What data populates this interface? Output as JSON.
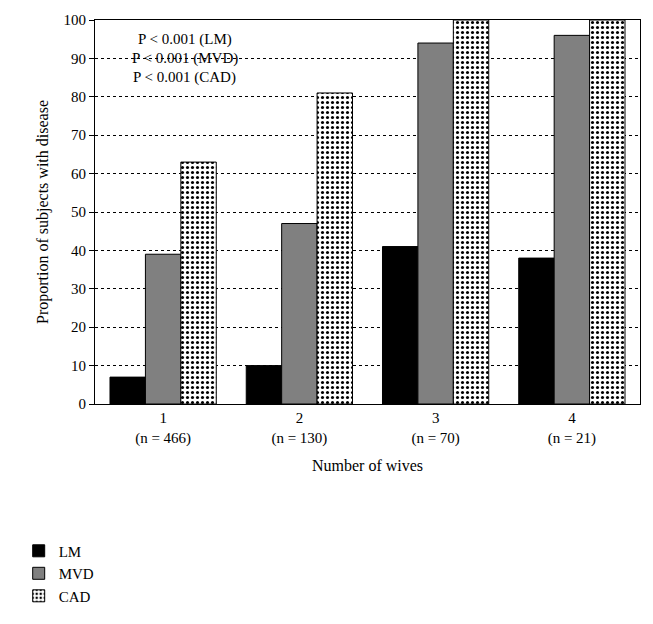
{
  "chart_data": {
    "type": "bar",
    "x_label": "Number of wives",
    "y_label": "Proportion of subjects with disease",
    "categories": [
      "1\n(n = 466)",
      "2\n(n = 130)",
      "3\n(n = 70)",
      "4\n(n = 21)"
    ],
    "series": [
      {
        "name": "LM",
        "color": "#000000",
        "marker": "solid",
        "values": [
          7,
          10,
          41,
          38
        ]
      },
      {
        "name": "MVD",
        "color": "#808080",
        "marker": "solid",
        "values": [
          39,
          47,
          94,
          96
        ]
      },
      {
        "name": "CAD",
        "color": "#ffffff",
        "marker": "dotted",
        "values": [
          63,
          81,
          100,
          100
        ]
      }
    ],
    "annotations": [
      "P < 0.001 (LM)",
      "P < 0.001 (MVD)",
      "P < 0.001 (CAD)"
    ],
    "ylim": [
      0,
      100
    ],
    "yticks": [
      0,
      10,
      20,
      30,
      40,
      50,
      60,
      70,
      80,
      90,
      100
    ],
    "grid": true,
    "legend": "bottom left"
  }
}
